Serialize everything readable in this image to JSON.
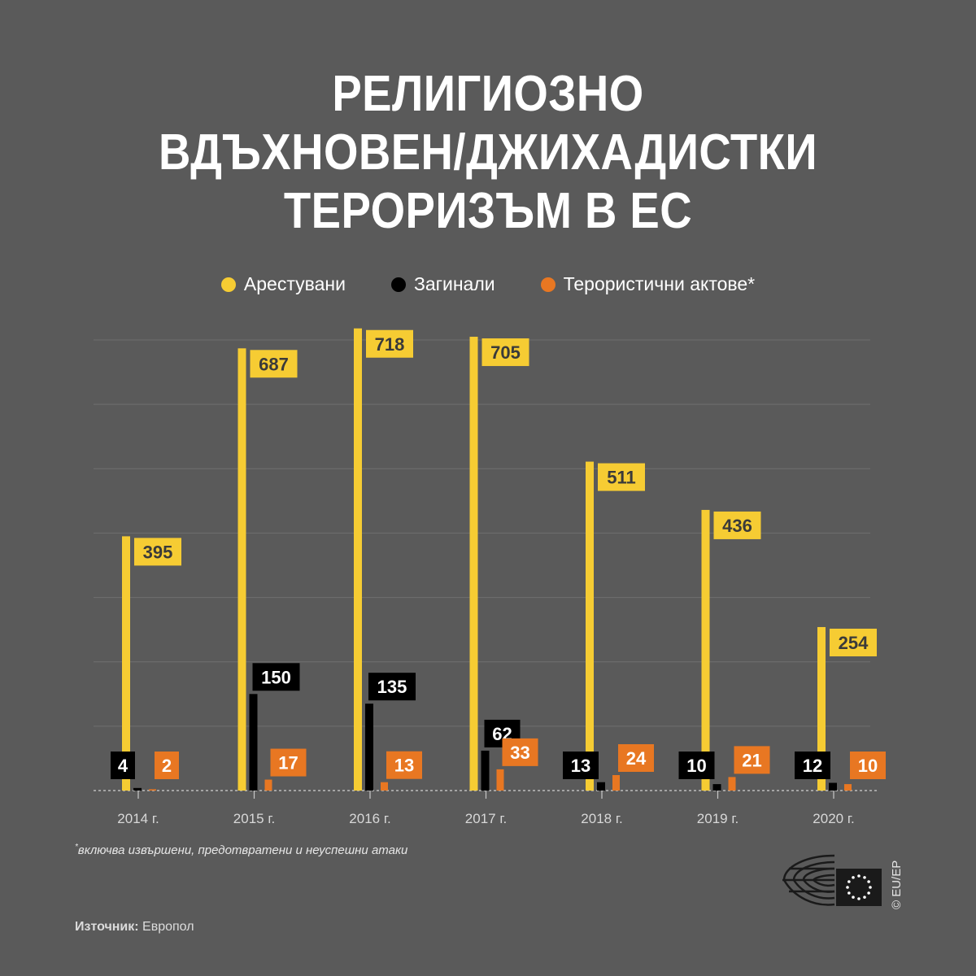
{
  "title_lines": [
    "РЕЛИГИОЗНО",
    "ВДЪХНОВЕН/ДЖИХАДИСТКИ",
    "ТЕРОРИЗЪМ В ЕС"
  ],
  "legend": [
    {
      "label": "Арестувани",
      "color": "#f6cc33"
    },
    {
      "label": "Загинали",
      "color": "#000000"
    },
    {
      "label": "Терористични актове*",
      "color": "#e87722"
    }
  ],
  "chart_data": {
    "type": "bar",
    "title": "РЕЛИГИОЗНО ВДЪХНОВЕН/ДЖИХАДИСТКИ ТЕРОРИЗЪМ В ЕС",
    "categories": [
      "2014 г.",
      "2015 г.",
      "2016 г.",
      "2017 г.",
      "2018 г.",
      "2019 г.",
      "2020 г."
    ],
    "series": [
      {
        "name": "Арестувани",
        "color": "#f6cc33",
        "values": [
          395,
          687,
          718,
          705,
          511,
          436,
          254
        ]
      },
      {
        "name": "Загинали",
        "color": "#000000",
        "values": [
          4,
          150,
          135,
          62,
          13,
          10,
          12
        ]
      },
      {
        "name": "Терористични актове*",
        "color": "#e87722",
        "values": [
          2,
          17,
          13,
          33,
          24,
          21,
          10
        ]
      }
    ],
    "ylim": [
      0,
      700
    ],
    "grid": true,
    "legend_position": "top-center"
  },
  "footnote": {
    "mark": "*",
    "text": "включва извършени, предотвратени и неуспешни атаки"
  },
  "source": {
    "label": "Източник:",
    "value": "Европол"
  },
  "copyright": "© EU/EP"
}
